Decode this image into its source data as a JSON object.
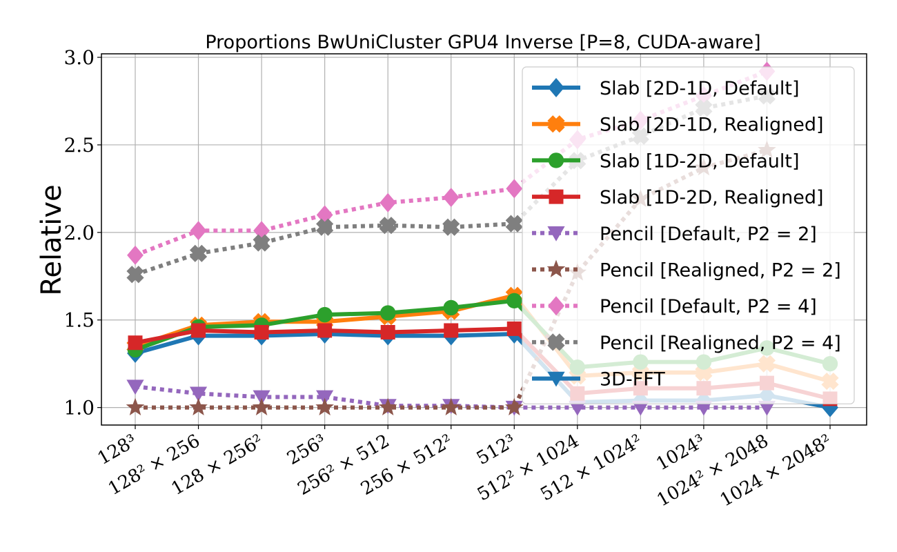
{
  "chart_data": {
    "type": "line",
    "title": "Proportions BwUniCluster GPU4 Inverse [P=8, CUDA-aware]",
    "xlabel": "",
    "ylabel": "Relative",
    "ylim": [
      0.9,
      3.02
    ],
    "yticks": [
      1.0,
      1.5,
      2.0,
      2.5,
      3.0
    ],
    "ytick_labels": [
      "1.0",
      "1.5",
      "2.0",
      "2.5",
      "3.0"
    ],
    "grid": true,
    "legend_position": "upper-right",
    "categories": [
      "128³",
      "128² × 256",
      "128 × 256²",
      "256³",
      "256² × 512",
      "256 × 512²",
      "512³",
      "512² × 1024",
      "512 × 1024²",
      "1024³",
      "1024² × 2048",
      "1024 × 2048²"
    ],
    "series": [
      {
        "name": "Slab [2D-1D, Default]",
        "color": "#1f77b4",
        "style": "solid",
        "marker": "diamond",
        "values": [
          1.31,
          1.41,
          1.41,
          1.42,
          1.41,
          1.41,
          1.42,
          1.03,
          1.04,
          1.04,
          1.07,
          1.0
        ]
      },
      {
        "name": "Slab [2D-1D, Realigned]",
        "color": "#ff7f0e",
        "style": "solid",
        "marker": "x",
        "values": [
          1.35,
          1.47,
          1.49,
          1.49,
          1.52,
          1.55,
          1.64,
          1.18,
          1.2,
          1.2,
          1.25,
          1.15
        ]
      },
      {
        "name": "Slab [1D-2D, Default]",
        "color": "#2ca02c",
        "style": "solid",
        "marker": "circle",
        "values": [
          1.33,
          1.46,
          1.47,
          1.53,
          1.54,
          1.57,
          1.61,
          1.23,
          1.26,
          1.26,
          1.34,
          1.25
        ]
      },
      {
        "name": "Slab [1D-2D, Realigned]",
        "color": "#d62728",
        "style": "solid",
        "marker": "square",
        "values": [
          1.37,
          1.44,
          1.43,
          1.44,
          1.43,
          1.44,
          1.45,
          1.08,
          1.11,
          1.11,
          1.14,
          1.05
        ]
      },
      {
        "name": "Pencil [Default, P2 = 2]",
        "color": "#9467bd",
        "style": "dotted",
        "marker": "triangle-down",
        "values": [
          1.12,
          1.08,
          1.06,
          1.06,
          1.01,
          1.01,
          1.0,
          1.0,
          1.0,
          1.0,
          1.0,
          null
        ]
      },
      {
        "name": "Pencil [Realigned, P2 = 2]",
        "color": "#8c564b",
        "style": "dotted",
        "marker": "star",
        "values": [
          1.0,
          1.0,
          1.0,
          1.0,
          1.0,
          1.0,
          1.0,
          1.77,
          2.19,
          2.37,
          2.47,
          null
        ]
      },
      {
        "name": "Pencil [Default, P2 = 4]",
        "color": "#e377c2",
        "style": "dotted",
        "marker": "diamond",
        "values": [
          1.87,
          2.01,
          2.01,
          2.1,
          2.17,
          2.2,
          2.25,
          2.53,
          2.64,
          2.78,
          2.92,
          null
        ]
      },
      {
        "name": "Pencil [Realigned, P2 = 4]",
        "color": "#7f7f7f",
        "style": "dotted",
        "marker": "x",
        "values": [
          1.76,
          1.88,
          1.94,
          2.03,
          2.04,
          2.03,
          2.05,
          2.41,
          2.55,
          2.71,
          2.78,
          null
        ]
      },
      {
        "name": "3D-FFT",
        "color": "#1f77b4",
        "style": "solid",
        "marker": "triangle-down",
        "values": [
          null,
          null,
          null,
          null,
          null,
          null,
          null,
          null,
          null,
          null,
          null,
          null
        ]
      }
    ]
  }
}
